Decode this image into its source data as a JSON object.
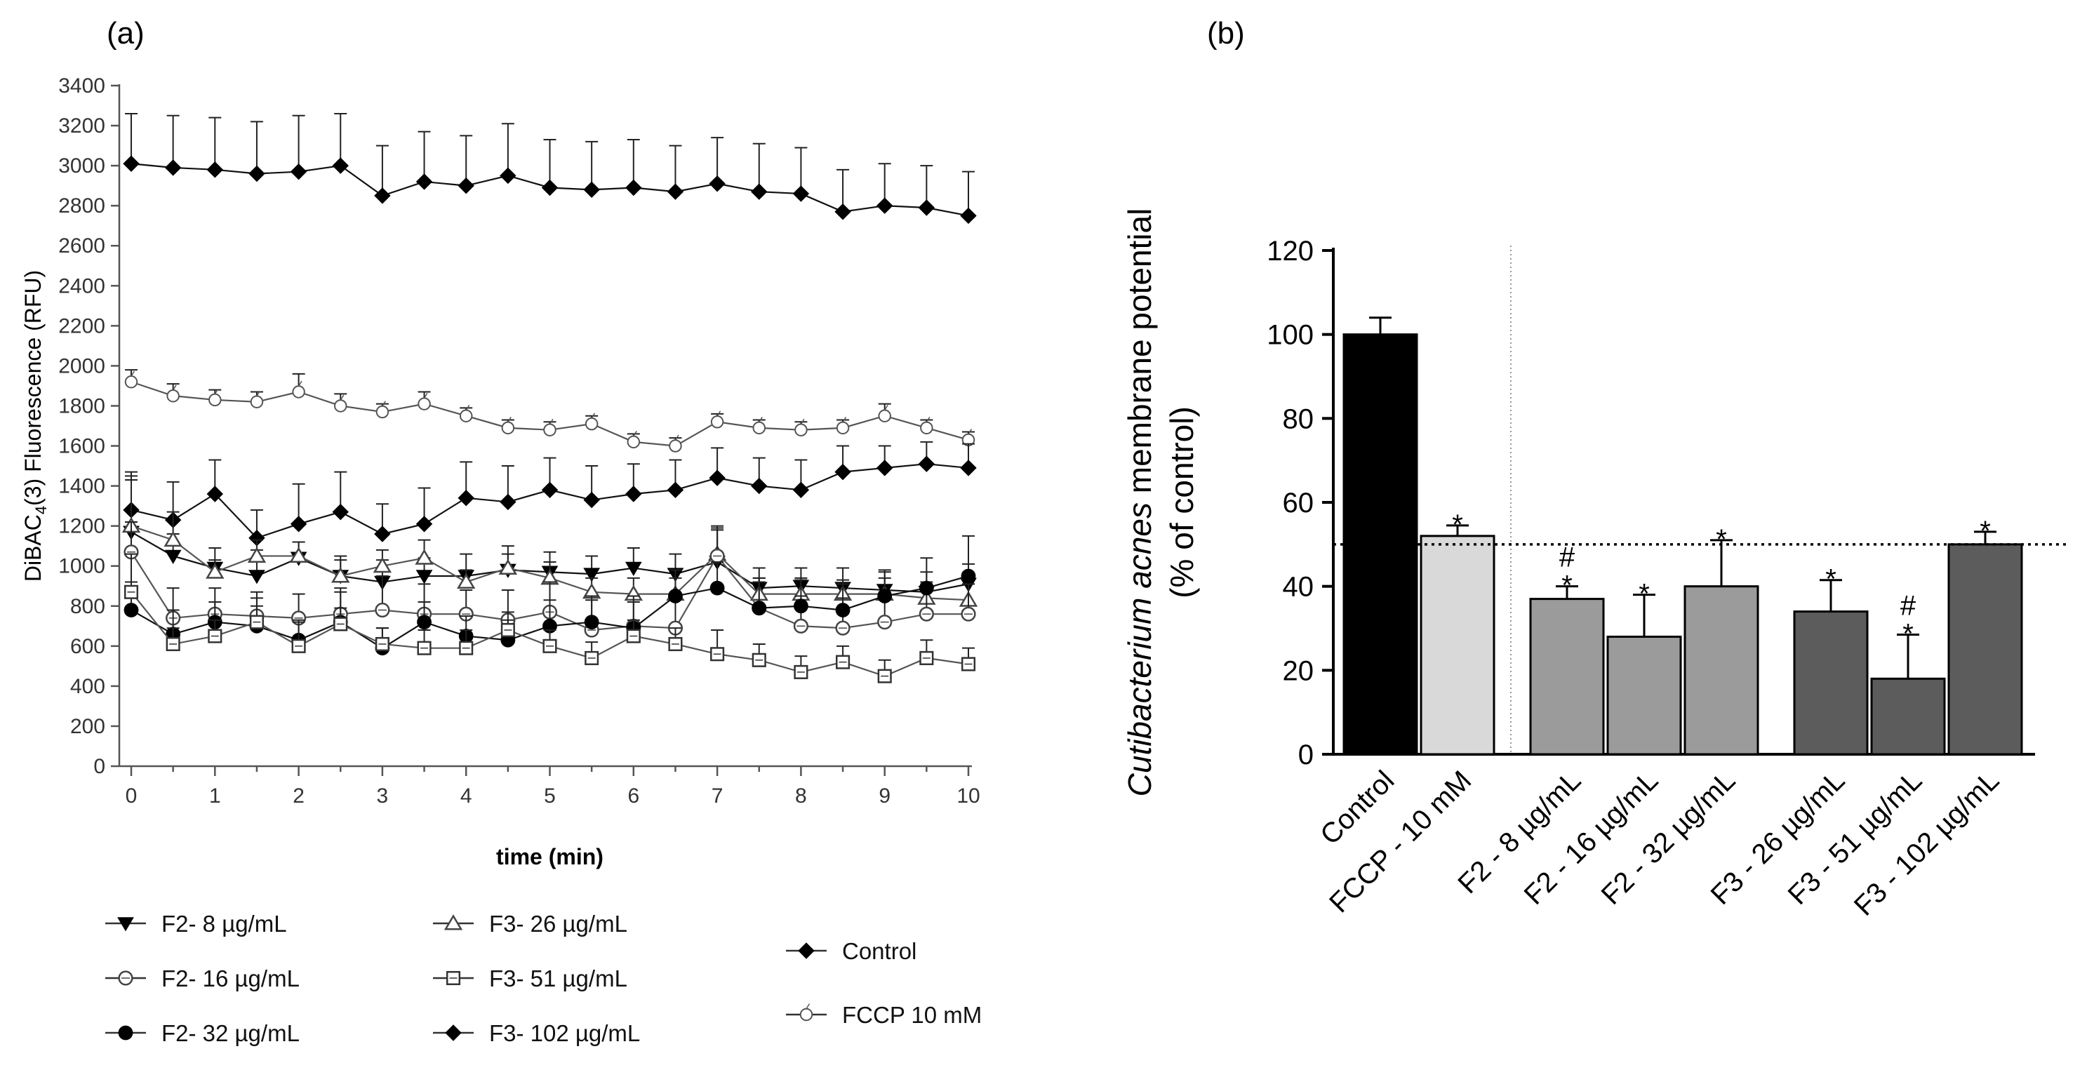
{
  "chart_data": [
    {
      "panel": "(a)",
      "type": "line",
      "xlabel": "time (min)",
      "ylabel_main": "DiBAC",
      "ylabel_sub": "4",
      "ylabel_rest": "(3) Fluorescence (RFU)",
      "xlim": [
        0,
        10
      ],
      "ylim": [
        0,
        3400
      ],
      "xticks": [
        "0",
        "1",
        "2",
        "3",
        "4",
        "5",
        "6",
        "7",
        "8",
        "9",
        "10"
      ],
      "yticks": [
        "0",
        "200",
        "400",
        "600",
        "800",
        "1000",
        "1200",
        "1400",
        "1600",
        "1800",
        "2000",
        "2200",
        "2400",
        "2600",
        "2800",
        "3000",
        "3200",
        "3400"
      ],
      "x": [
        0,
        0.5,
        1,
        1.5,
        2,
        2.5,
        3,
        3.5,
        4,
        4.5,
        5,
        5.5,
        6,
        6.5,
        7,
        7.5,
        8,
        8.5,
        9,
        9.5,
        10
      ],
      "series": [
        {
          "name": "Control",
          "marker": "diamond",
          "values": [
            3010,
            2990,
            2980,
            2960,
            2970,
            3000,
            2850,
            2920,
            2900,
            2950,
            2890,
            2880,
            2890,
            2870,
            2910,
            2870,
            2860,
            2770,
            2800,
            2790,
            2750
          ],
          "errors": [
            250,
            260,
            260,
            260,
            280,
            260,
            250,
            250,
            250,
            260,
            240,
            240,
            240,
            230,
            230,
            240,
            230,
            210,
            210,
            210,
            220
          ]
        },
        {
          "name": "FCCP 10 mM",
          "marker": "open-circle-tick",
          "values": [
            1920,
            1850,
            1830,
            1820,
            1870,
            1800,
            1770,
            1810,
            1750,
            1690,
            1680,
            1710,
            1620,
            1600,
            1720,
            1690,
            1680,
            1690,
            1750,
            1690,
            1630
          ],
          "errors": [
            60,
            60,
            50,
            50,
            90,
            60,
            40,
            60,
            40,
            40,
            40,
            40,
            40,
            40,
            40,
            40,
            40,
            40,
            60,
            40,
            40
          ]
        },
        {
          "name": "F3- 102 µg/mL",
          "marker": "diamond",
          "values": [
            1280,
            1230,
            1360,
            1140,
            1210,
            1270,
            1160,
            1210,
            1340,
            1320,
            1380,
            1330,
            1360,
            1380,
            1440,
            1400,
            1380,
            1470,
            1490,
            1510,
            1490
          ],
          "errors": [
            190,
            190,
            170,
            140,
            200,
            200,
            150,
            180,
            180,
            180,
            160,
            170,
            150,
            150,
            150,
            140,
            150,
            130,
            110,
            110,
            120
          ]
        },
        {
          "name": "F2- 8 µg/mL",
          "marker": "triangle-down",
          "values": [
            1170,
            1050,
            990,
            950,
            1040,
            950,
            920,
            950,
            950,
            980,
            970,
            960,
            990,
            960,
            1020,
            890,
            900,
            890,
            880,
            870,
            910
          ],
          "errors": [
            280,
            110,
            100,
            130,
            80,
            100,
            110,
            90,
            110,
            120,
            100,
            90,
            100,
            100,
            160,
            100,
            90,
            100,
            90,
            100,
            100
          ]
        },
        {
          "name": "F3- 26 µg/mL",
          "marker": "triangle-up",
          "values": [
            1200,
            1130,
            970,
            1050,
            1050,
            950,
            1000,
            1040,
            920,
            990,
            940,
            870,
            860,
            860,
            1060,
            860,
            860,
            860,
            860,
            840,
            830
          ],
          "errors": [
            230,
            140,
            60,
            80,
            70,
            80,
            80,
            90,
            60,
            70,
            80,
            70,
            80,
            80,
            130,
            80,
            80,
            70,
            80,
            80,
            80
          ]
        },
        {
          "name": "F2- 16 µg/mL",
          "marker": "open-circle-cross",
          "values": [
            1070,
            740,
            760,
            750,
            740,
            760,
            780,
            760,
            760,
            730,
            770,
            680,
            700,
            690,
            1050,
            790,
            700,
            690,
            720,
            760,
            760
          ],
          "errors": [
            150,
            150,
            130,
            120,
            120,
            130,
            170,
            150,
            120,
            150,
            150,
            150,
            150,
            150,
            150,
            150,
            150,
            150,
            150,
            150,
            150
          ]
        },
        {
          "name": "F2- 32 µg/mL",
          "marker": "filled-circle",
          "values": [
            780,
            660,
            720,
            700,
            630,
            720,
            590,
            720,
            650,
            630,
            700,
            720,
            690,
            850,
            890,
            790,
            800,
            780,
            850,
            890,
            950
          ],
          "errors": [
            140,
            120,
            100,
            100,
            100,
            150,
            100,
            100,
            100,
            100,
            130,
            130,
            130,
            130,
            130,
            130,
            130,
            130,
            130,
            150,
            200
          ]
        },
        {
          "name": "F3- 51 µg/mL",
          "marker": "open-square",
          "values": [
            870,
            610,
            650,
            720,
            600,
            710,
            610,
            590,
            590,
            680,
            600,
            540,
            650,
            610,
            560,
            530,
            470,
            520,
            450,
            540,
            510
          ],
          "errors": [
            190,
            80,
            80,
            120,
            120,
            80,
            80,
            90,
            90,
            90,
            80,
            80,
            80,
            80,
            120,
            80,
            80,
            80,
            80,
            90,
            80
          ]
        }
      ],
      "legend": [
        {
          "label": "F2- 8 µg/mL",
          "marker": "triangle-down"
        },
        {
          "label": "F2- 16 µg/mL",
          "marker": "open-circle-cross"
        },
        {
          "label": "F2- 32 µg/mL",
          "marker": "filled-circle"
        },
        {
          "label": "F3- 26 µg/mL",
          "marker": "triangle-up"
        },
        {
          "label": "F3- 51 µg/mL",
          "marker": "open-square"
        },
        {
          "label": "F3- 102 µg/mL",
          "marker": "diamond"
        },
        {
          "label": "Control",
          "marker": "diamond"
        },
        {
          "label": "FCCP 10 mM",
          "marker": "open-circle-tick"
        }
      ]
    },
    {
      "panel": "(b)",
      "type": "bar",
      "ylabel_italic": "Cutibacterium acnes",
      "ylabel_rest": " membrane potential",
      "ylabel_line2": "(% of control)",
      "ylim": [
        0,
        120
      ],
      "yticks": [
        "0",
        "20",
        "40",
        "60",
        "80",
        "100",
        "120"
      ],
      "reference_line": 50,
      "categories": [
        "Control",
        "FCCP - 10 mM",
        "F2 - 8 µg/mL",
        "F2 - 16 µg/mL",
        "F2 - 32 µg/mL",
        "F3 - 26 µg/mL",
        "F3 - 51 µg/mL",
        "F3 - 102 µg/mL"
      ],
      "values": [
        100,
        52,
        37,
        28,
        40,
        34,
        18,
        50
      ],
      "errors": [
        4,
        2.5,
        3,
        10,
        11,
        7.5,
        10.5,
        3
      ],
      "colors": [
        "#000000",
        "#d9d9d9",
        "#9b9b9b",
        "#9b9b9b",
        "#9b9b9b",
        "#5c5c5c",
        "#5c5c5c",
        "#5c5c5c"
      ],
      "annotations": [
        "",
        "*",
        "#\n*",
        "*",
        "*",
        "*",
        "#\n*",
        "*"
      ]
    }
  ]
}
